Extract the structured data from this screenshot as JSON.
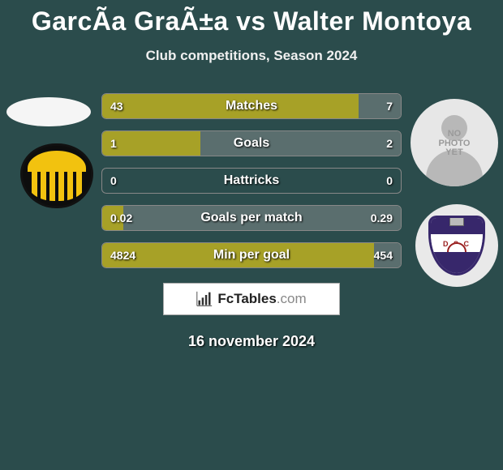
{
  "title": "GarcÃ­a GraÃ±a vs Walter Montoya",
  "subtitle": "Club competitions, Season 2024",
  "date": "16 november 2024",
  "branding": {
    "name": "FcTables",
    "domain": ".com"
  },
  "colors": {
    "background": "#2b4c4c",
    "player1_bar": "#a7a127",
    "player2_bar": "#5a6e6e",
    "bar_border": "#888888"
  },
  "player1": {
    "name": "GarcÃ­a GraÃ±a",
    "club": "Peñarol",
    "club_colors": {
      "primary": "#f2c20f",
      "secondary": "#0d0d0d"
    }
  },
  "player2": {
    "name": "Walter Montoya",
    "club": "Defensor Sporting",
    "photo_placeholder": "NO PHOTO YET",
    "club_colors": {
      "primary": "#37276b",
      "secondary": "#ffffff",
      "accent": "#9a2020"
    }
  },
  "stats": [
    {
      "label": "Matches",
      "p1": "43",
      "p2": "7",
      "p1_pct": 86,
      "p2_pct": 14
    },
    {
      "label": "Goals",
      "p1": "1",
      "p2": "2",
      "p1_pct": 33,
      "p2_pct": 67
    },
    {
      "label": "Hattricks",
      "p1": "0",
      "p2": "0",
      "p1_pct": 0,
      "p2_pct": 0
    },
    {
      "label": "Goals per match",
      "p1": "0.02",
      "p2": "0.29",
      "p1_pct": 7,
      "p2_pct": 93
    },
    {
      "label": "Min per goal",
      "p1": "4824",
      "p2": "454",
      "p1_pct": 91,
      "p2_pct": 9
    }
  ]
}
